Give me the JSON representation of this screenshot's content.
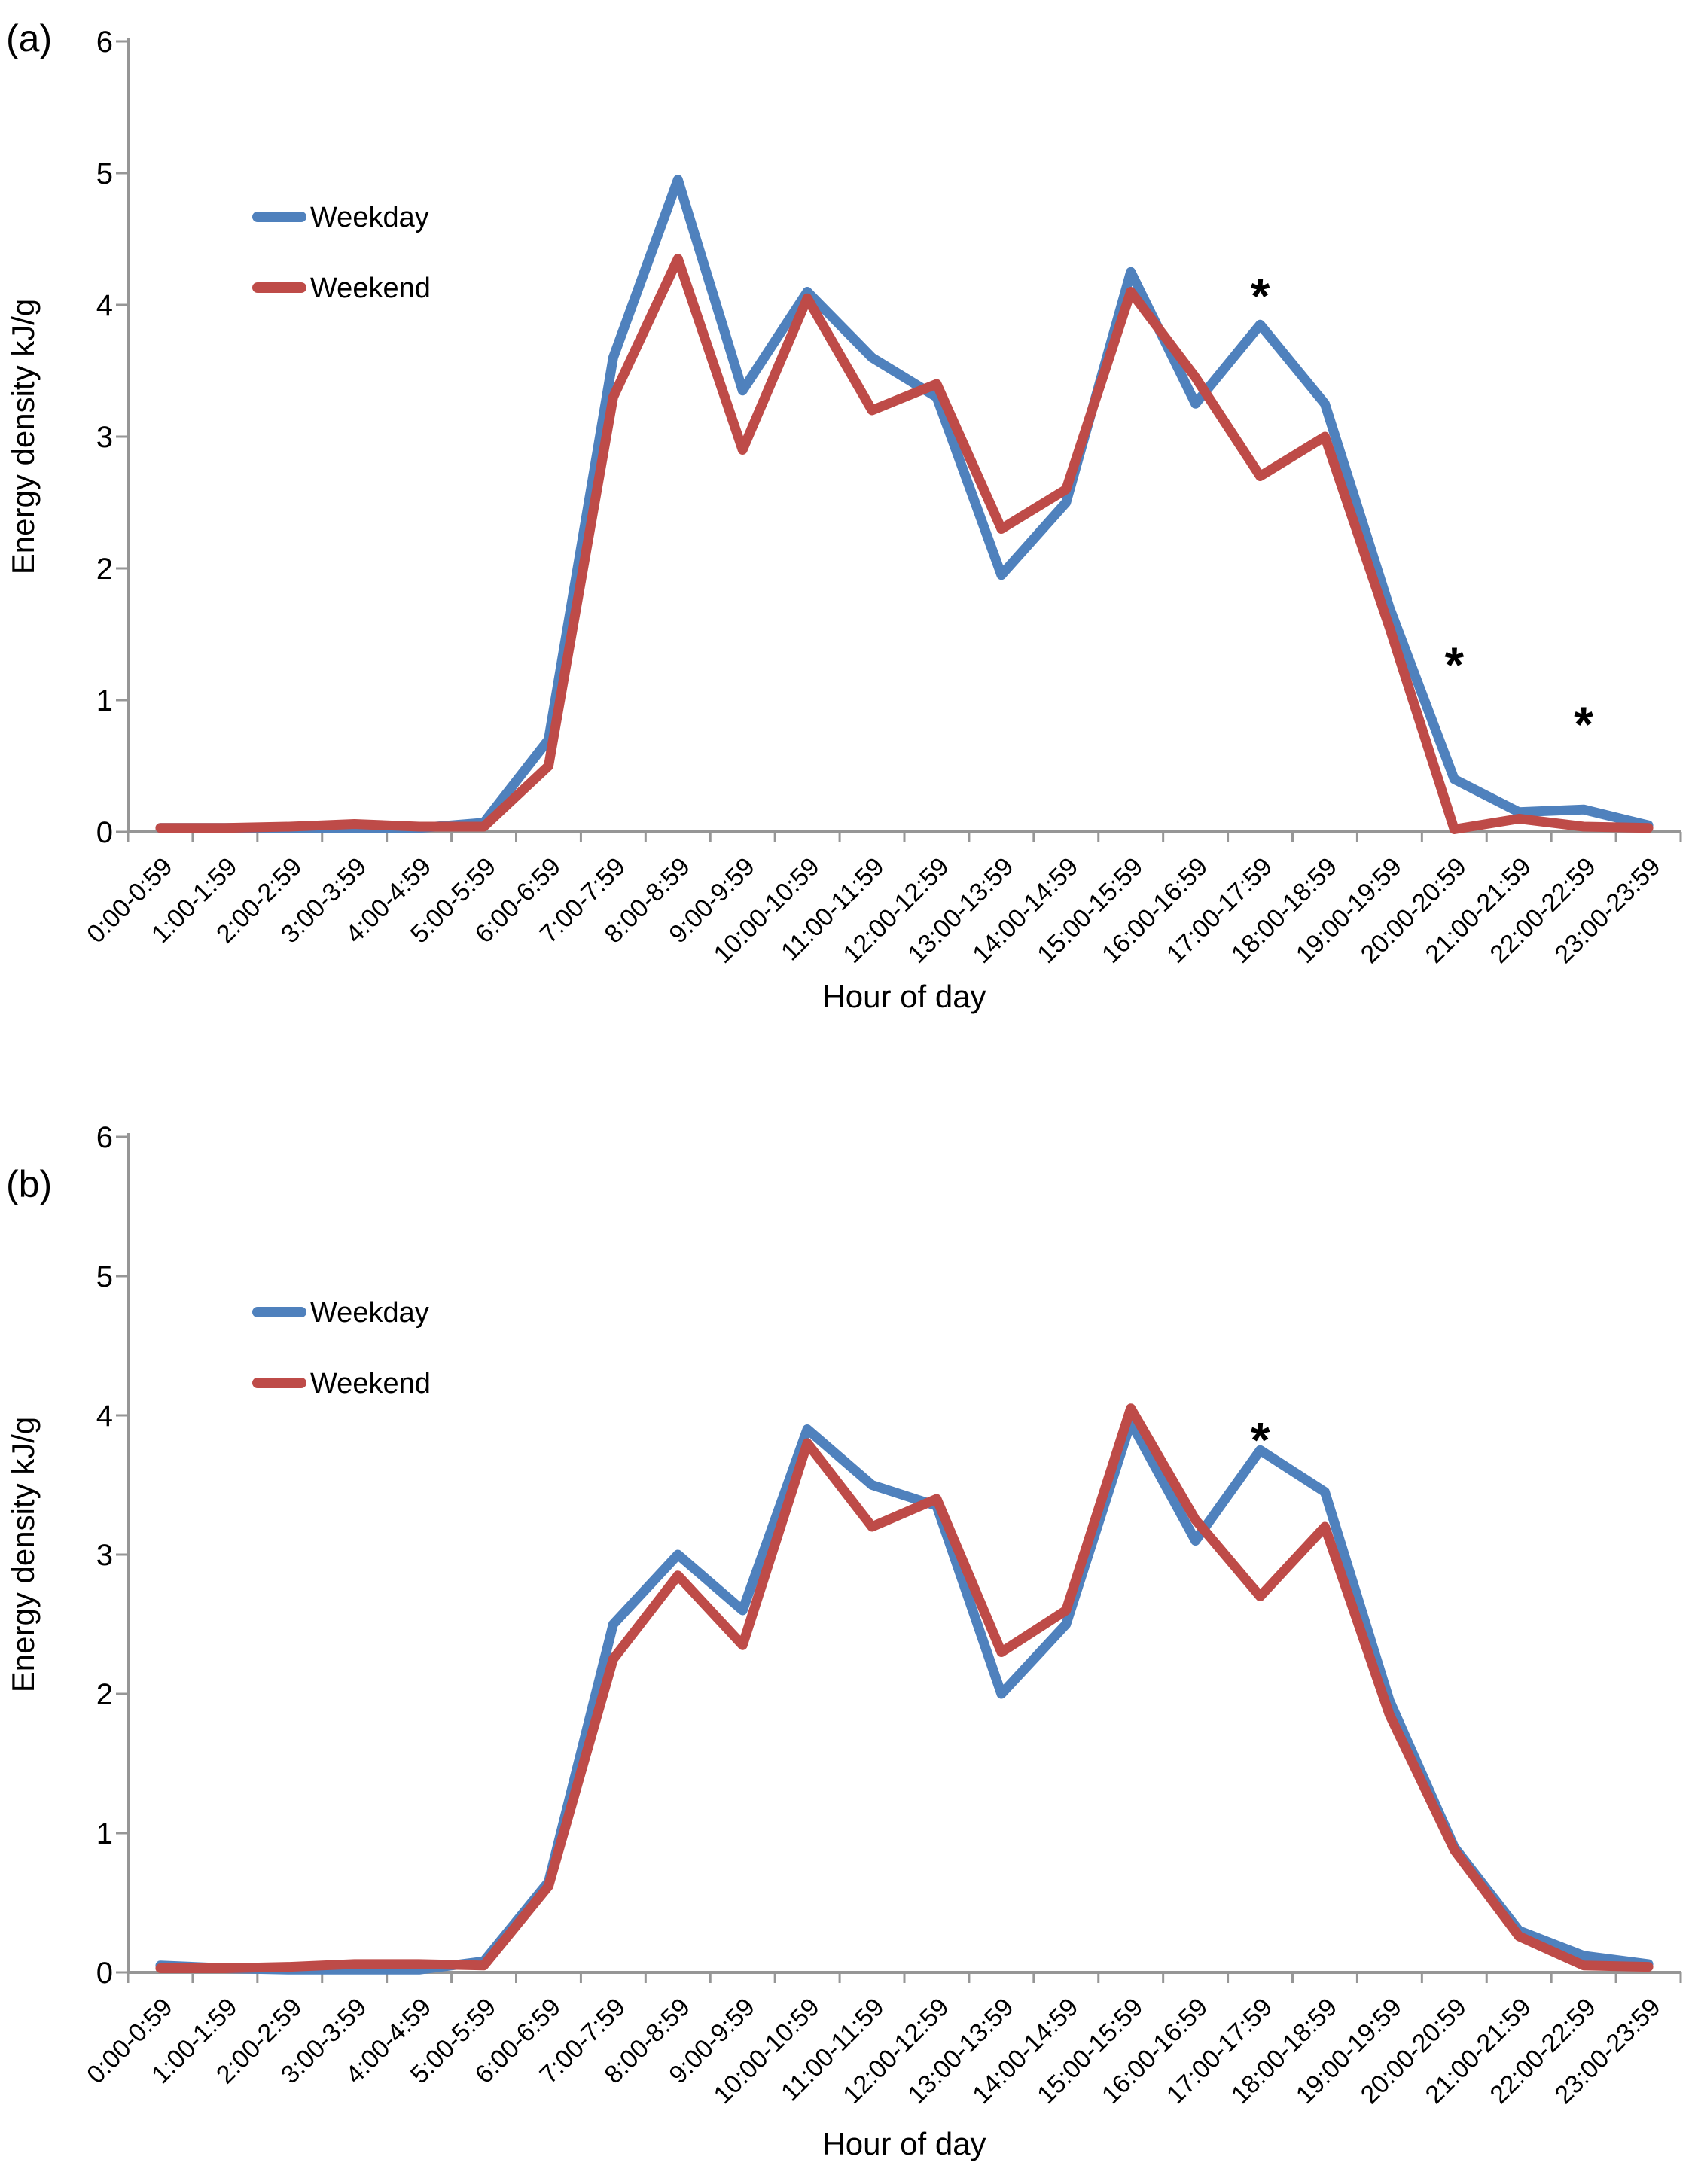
{
  "styles": {
    "axis_color": "#969696",
    "text_color": "#000000",
    "background": "#FFFFFF",
    "weekday_color": "#4F81BD",
    "weekend_color": "#BE4B48"
  },
  "chart_data": [
    {
      "type": "line",
      "panel_label": "(a)",
      "xlabel": "Hour of day",
      "ylabel": "Energy density kJ/g",
      "ylim": [
        0,
        6
      ],
      "yticks": [
        0,
        1,
        2,
        3,
        4,
        5,
        6
      ],
      "grid": false,
      "legend_position": "upper-left-inside",
      "categories": [
        "0:00-0:59",
        "1:00-1:59",
        "2:00-2:59",
        "3:00-3:59",
        "4:00-4:59",
        "5:00-5:59",
        "6:00-6:59",
        "7:00-7:59",
        "8:00-8:59",
        "9:00-9:59",
        "10:00-10:59",
        "11:00-11:59",
        "12:00-12:59",
        "13:00-13:59",
        "14:00-14:59",
        "15:00-15:59",
        "16:00-16:59",
        "17:00-17:59",
        "18:00-18:59",
        "19:00-19:59",
        "20:00-20:59",
        "21:00-21:59",
        "22:00-22:59",
        "23:00-23:59"
      ],
      "series": [
        {
          "name": "Weekday",
          "color": "#4F81BD",
          "values": [
            0.03,
            0.03,
            0.03,
            0.03,
            0.03,
            0.07,
            0.7,
            3.6,
            4.95,
            3.35,
            4.1,
            3.6,
            3.3,
            1.95,
            2.5,
            4.25,
            3.25,
            3.85,
            3.25,
            1.7,
            0.4,
            0.15,
            0.17,
            0.05
          ]
        },
        {
          "name": "Weekend",
          "color": "#BE4B48",
          "values": [
            0.03,
            0.03,
            0.04,
            0.06,
            0.04,
            0.04,
            0.5,
            3.3,
            4.35,
            2.9,
            4.05,
            3.2,
            3.4,
            2.3,
            2.6,
            4.1,
            3.45,
            2.7,
            3.0,
            1.55,
            0.02,
            0.1,
            0.04,
            0.03
          ]
        }
      ],
      "annotations": [
        {
          "symbol": "*",
          "category_index": 17,
          "y": 4.2
        },
        {
          "symbol": "*",
          "category_index": 20,
          "y": 1.4
        },
        {
          "symbol": "*",
          "category_index": 22,
          "y": 0.95
        }
      ]
    },
    {
      "type": "line",
      "panel_label": "(b)",
      "xlabel": "Hour of day",
      "ylabel": "Energy density kJ/g",
      "ylim": [
        0,
        6
      ],
      "yticks": [
        0,
        1,
        2,
        3,
        4,
        5,
        6
      ],
      "grid": false,
      "legend_position": "upper-left-inside",
      "categories": [
        "0:00-0:59",
        "1:00-1:59",
        "2:00-2:59",
        "3:00-3:59",
        "4:00-4:59",
        "5:00-5:59",
        "6:00-6:59",
        "7:00-7:59",
        "8:00-8:59",
        "9:00-9:59",
        "10:00-10:59",
        "11:00-11:59",
        "12:00-12:59",
        "13:00-13:59",
        "14:00-14:59",
        "15:00-15:59",
        "16:00-16:59",
        "17:00-17:59",
        "18:00-18:59",
        "19:00-19:59",
        "20:00-20:59",
        "21:00-21:59",
        "22:00-22:59",
        "23:00-23:59"
      ],
      "series": [
        {
          "name": "Weekday",
          "color": "#4F81BD",
          "values": [
            0.05,
            0.03,
            0.02,
            0.02,
            0.02,
            0.08,
            0.65,
            2.5,
            3.0,
            2.6,
            3.9,
            3.5,
            3.35,
            2.0,
            2.5,
            3.95,
            3.1,
            3.75,
            3.45,
            1.95,
            0.9,
            0.3,
            0.12,
            0.06
          ]
        },
        {
          "name": "Weekend",
          "color": "#BE4B48",
          "values": [
            0.03,
            0.03,
            0.04,
            0.06,
            0.06,
            0.05,
            0.62,
            2.25,
            2.85,
            2.35,
            3.8,
            3.2,
            3.4,
            2.3,
            2.6,
            4.05,
            3.25,
            2.7,
            3.2,
            1.85,
            0.88,
            0.26,
            0.05,
            0.04
          ]
        }
      ],
      "annotations": [
        {
          "symbol": "*",
          "category_index": 17,
          "y": 3.95
        }
      ]
    }
  ]
}
